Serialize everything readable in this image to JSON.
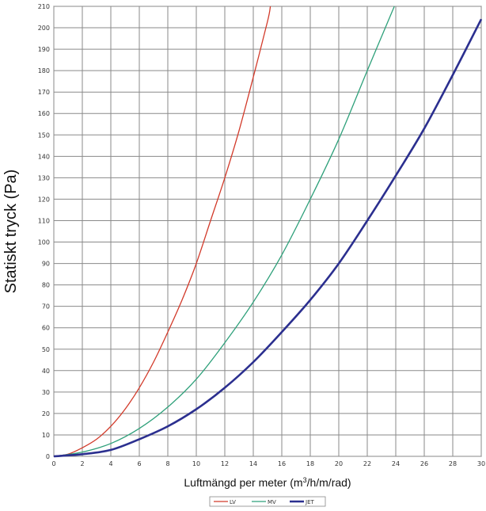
{
  "chart_data": {
    "type": "line",
    "xlabel_main": "Luftmängd per meter (m",
    "xlabel_sup": "3",
    "xlabel_tail": "/h/m/rad)",
    "ylabel": "Statiskt tryck (Pa)",
    "xlim": [
      0,
      30
    ],
    "ylim": [
      0,
      210
    ],
    "x_ticks": [
      0,
      2,
      4,
      6,
      8,
      10,
      12,
      14,
      16,
      18,
      20,
      22,
      24,
      26,
      28,
      30
    ],
    "y_ticks": [
      0,
      10,
      20,
      30,
      40,
      50,
      60,
      70,
      80,
      90,
      100,
      110,
      120,
      130,
      140,
      150,
      160,
      170,
      180,
      190,
      200,
      210
    ],
    "grid": true,
    "legend_position": "bottom-center",
    "series": [
      {
        "name": "LV",
        "color": "#d23a2a",
        "width": 1.3,
        "x": [
          0,
          1,
          2,
          3,
          4,
          5,
          6,
          7,
          8,
          9,
          10,
          11,
          12,
          13,
          14,
          15,
          15.2
        ],
        "y": [
          0,
          1,
          4,
          8,
          14,
          22,
          32,
          44,
          58,
          73,
          90,
          110,
          130,
          152,
          177,
          203,
          210
        ]
      },
      {
        "name": "MV",
        "color": "#2ea07a",
        "width": 1.3,
        "x": [
          0,
          2,
          4,
          6,
          8,
          10,
          12,
          14,
          16,
          18,
          20,
          22,
          23.9
        ],
        "y": [
          0,
          2,
          6,
          13,
          23,
          36,
          53,
          72,
          94,
          120,
          148,
          180,
          210
        ]
      },
      {
        "name": "JET",
        "color": "#2b2f8f",
        "width": 2.6,
        "x": [
          0,
          2,
          4,
          6,
          8,
          10,
          12,
          14,
          16,
          18,
          20,
          22,
          24,
          26,
          28,
          30
        ],
        "y": [
          0,
          1,
          3,
          8,
          14,
          22,
          32,
          44,
          58,
          73,
          90,
          110,
          131,
          153,
          178,
          204
        ]
      }
    ]
  }
}
